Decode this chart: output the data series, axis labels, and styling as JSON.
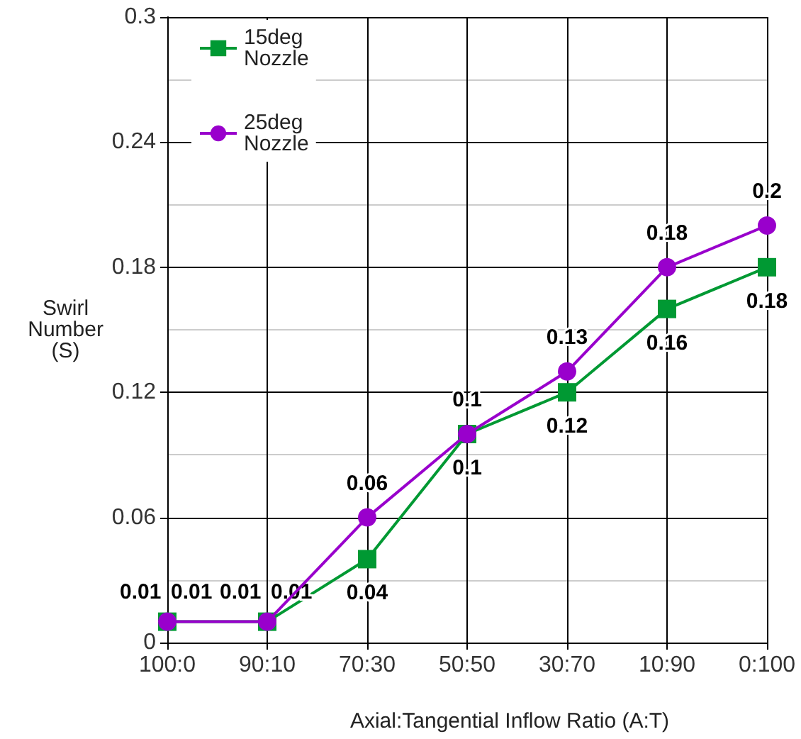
{
  "chart_data": {
    "type": "line",
    "xlabel": "Axial:Tangential Inflow Ratio (A:T)",
    "ylabel": "Swirl Number (S)",
    "categories": [
      "100:0",
      "90:10",
      "70:30",
      "50:50",
      "30:70",
      "10:90",
      "0:100"
    ],
    "series": [
      {
        "name": "15deg Nozzle",
        "color": "#009933",
        "marker": "square",
        "values": [
          0.01,
          0.01,
          0.04,
          0.1,
          0.12,
          0.16,
          0.18
        ]
      },
      {
        "name": "25deg Nozzle",
        "color": "#9900cc",
        "marker": "circle",
        "values": [
          0.01,
          0.01,
          0.06,
          0.1,
          0.13,
          0.18,
          0.2
        ]
      }
    ],
    "ylim": [
      0,
      0.3
    ],
    "yticks": [
      0,
      0.06,
      0.12,
      0.18,
      0.24,
      0.3
    ],
    "grid": true,
    "legend": "top left",
    "data_labels": true,
    "line_style": "solid"
  }
}
